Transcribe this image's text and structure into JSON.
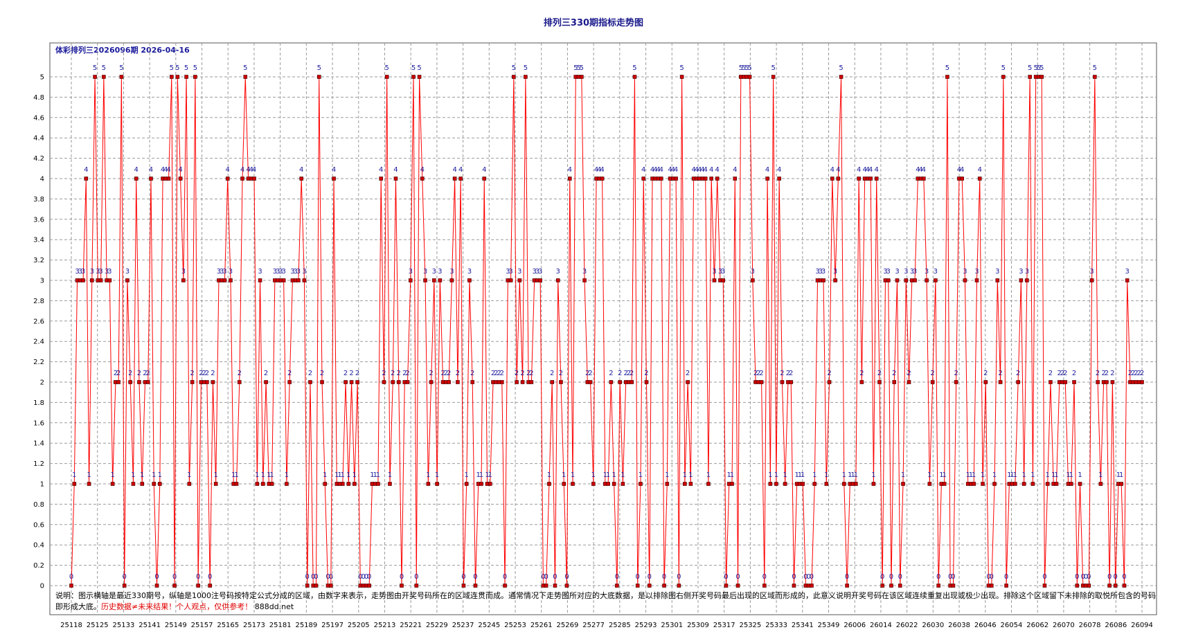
{
  "page": {
    "title": "排列三330期指标走势图"
  },
  "note": {
    "text": "说明：图示横轴是最近330期号，纵轴是1000注号码按特定公式分成的区域，由数字来表示，走势图由开奖号码所在的区域连贯而成。通常情况下走势图所对应的大底数据，是以排除图右侧开奖号码最后出现的区域而形成的，此意义说明开奖号码在该区域连续重复出现或极少出现。排除这个区域留下未排除的取悦所包含的号码即形成大底。",
    "warning": "历史数据≠未来结果！个人观点，仅供参考！",
    "site": "888dd.net"
  },
  "colors": {
    "line": "#ff0000",
    "marker_fill": "#cc0000",
    "marker_stroke": "#400000",
    "label": "#1a1a9c",
    "grid": "#9a9a9a",
    "frame": "#555555"
  },
  "chart_data": {
    "type": "line",
    "title": "排列三330期指标走势图",
    "subtitle": "体彩排列三2026096期  2026-04-16",
    "xlabel": "",
    "ylabel": "",
    "ylim": [
      0,
      5
    ],
    "y_ticks": [
      0,
      0.2,
      0.4,
      0.6,
      0.8,
      1,
      1.2,
      1.4,
      1.6,
      1.8,
      2,
      2.2,
      2.4,
      2.6,
      2.8,
      3,
      3.2,
      3.4,
      3.6,
      3.8,
      4,
      4.2,
      4.4,
      4.6,
      4.8,
      5
    ],
    "x_tick_labels": [
      "25118",
      "25125",
      "25133",
      "25141",
      "25149",
      "25157",
      "25165",
      "25173",
      "25181",
      "25189",
      "25197",
      "25205",
      "25213",
      "25221",
      "25229",
      "25237",
      "25245",
      "25253",
      "25261",
      "25269",
      "25277",
      "25285",
      "25293",
      "25301",
      "25309",
      "25317",
      "25325",
      "25333",
      "25341",
      "25349",
      "26006",
      "26014",
      "26022",
      "26030",
      "26038",
      "26046",
      "26054",
      "26062",
      "26070",
      "26078",
      "26086",
      "26094"
    ],
    "grid": true,
    "legend": "none",
    "values": [
      0,
      1,
      3,
      3,
      3,
      4,
      1,
      3,
      5,
      3,
      3,
      5,
      3,
      3,
      1,
      2,
      2,
      5,
      0,
      3,
      2,
      1,
      4,
      2,
      1,
      2,
      2,
      4,
      1,
      0,
      1,
      4,
      4,
      4,
      5,
      0,
      5,
      4,
      3,
      5,
      1,
      2,
      5,
      0,
      2,
      2,
      2,
      0,
      2,
      1,
      3,
      3,
      3,
      4,
      3,
      1,
      1,
      2,
      4,
      5,
      4,
      4,
      4,
      1,
      3,
      1,
      2,
      1,
      1,
      3,
      3,
      3,
      3,
      1,
      2,
      3,
      3,
      3,
      4,
      3,
      0,
      2,
      0,
      0,
      5,
      2,
      1,
      0,
      0,
      4,
      1,
      1,
      1,
      2,
      1,
      2,
      1,
      2,
      0,
      0,
      0,
      0,
      1,
      1,
      1,
      4,
      2,
      5,
      1,
      2,
      4,
      2,
      0,
      2,
      2,
      3,
      5,
      0,
      5,
      4,
      3,
      1,
      2,
      3,
      1,
      3,
      2,
      2,
      2,
      3,
      4,
      2,
      4,
      0,
      1,
      3,
      2,
      0,
      1,
      1,
      4,
      1,
      1,
      2,
      2,
      2,
      2,
      0,
      3,
      3,
      5,
      2,
      3,
      2,
      5,
      2,
      2,
      3,
      3,
      3,
      0,
      0,
      1,
      2,
      0,
      3,
      2,
      1,
      0,
      4,
      1,
      5,
      5,
      5,
      3,
      2,
      2,
      1,
      4,
      4,
      4,
      1,
      1,
      2,
      1,
      0,
      2,
      1,
      2,
      2,
      2,
      5,
      0,
      1,
      4,
      2,
      0,
      4,
      4,
      4,
      4,
      0,
      1,
      4,
      4,
      4,
      0,
      5,
      1,
      2,
      1,
      4,
      4,
      4,
      4,
      4,
      1,
      4,
      3,
      4,
      3,
      3,
      0,
      1,
      1,
      4,
      0,
      5,
      5,
      5,
      5,
      3,
      2,
      2,
      2,
      0,
      4,
      1,
      5,
      1,
      4,
      2,
      1,
      2,
      2,
      0,
      1,
      1,
      1,
      0,
      0,
      0,
      1,
      3,
      3,
      3,
      1,
      2,
      4,
      3,
      4,
      5,
      1,
      0,
      1,
      1,
      1,
      4,
      2,
      4,
      4,
      4,
      1,
      4,
      2,
      0,
      3,
      3,
      0,
      2,
      3,
      0,
      1,
      3,
      2,
      3,
      3,
      4,
      4,
      4,
      3,
      1,
      2,
      3,
      0,
      1,
      1,
      5,
      0,
      0,
      2,
      4,
      4,
      3,
      1,
      1,
      1,
      3,
      4,
      1,
      2,
      0,
      0,
      1,
      3,
      2,
      5,
      0,
      1,
      1,
      1,
      2,
      3,
      1,
      3,
      5,
      1,
      5,
      5,
      5,
      0,
      1,
      2,
      1,
      1,
      2,
      2,
      2,
      1,
      1,
      2,
      0,
      1,
      0,
      0,
      0,
      3,
      5,
      2,
      1,
      2,
      2,
      0,
      2,
      0,
      1,
      1,
      0,
      3,
      2,
      2,
      2,
      2,
      2
    ]
  }
}
